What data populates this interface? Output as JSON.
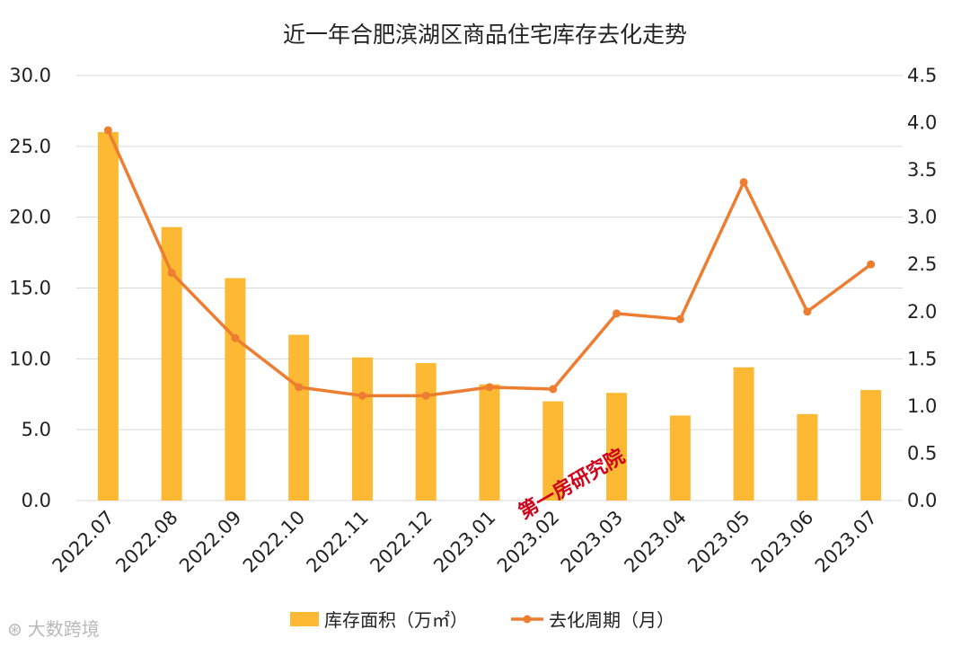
{
  "chart_data": {
    "type": "bar+line",
    "title": "近一年合肥滨湖区商品住宅库存去化走势",
    "categories": [
      "2022.07",
      "2022.08",
      "2022.09",
      "2022.10",
      "2022.11",
      "2022.12",
      "2023.01",
      "2023.02",
      "2023.03",
      "2023.04",
      "2023.05",
      "2023.06",
      "2023.07"
    ],
    "series": [
      {
        "name": "库存面积（万㎡）",
        "type": "bar",
        "axis": "left",
        "color": "#FDB933",
        "values": [
          26.0,
          19.3,
          15.7,
          11.7,
          10.1,
          9.7,
          8.2,
          7.0,
          7.6,
          6.0,
          9.4,
          6.1,
          7.8
        ]
      },
      {
        "name": "去化周期（月）",
        "type": "line",
        "axis": "right",
        "color": "#ED7D31",
        "values": [
          3.92,
          2.41,
          1.72,
          1.2,
          1.11,
          1.11,
          1.2,
          1.18,
          1.98,
          1.92,
          3.37,
          2.0,
          2.5
        ]
      }
    ],
    "y_left": {
      "min": 0,
      "max": 30,
      "step": 5,
      "ticks": [
        "0.0",
        "5.0",
        "10.0",
        "15.0",
        "20.0",
        "25.0",
        "30.0"
      ]
    },
    "y_right": {
      "min": 0,
      "max": 4.5,
      "step": 0.5,
      "ticks": [
        "0.0",
        "0.5",
        "1.0",
        "1.5",
        "2.0",
        "2.5",
        "3.0",
        "3.5",
        "4.0",
        "4.5"
      ]
    },
    "legend_position": "bottom",
    "grid": true
  },
  "watermark": "第一房研究院",
  "logo_text": "大数跨境"
}
